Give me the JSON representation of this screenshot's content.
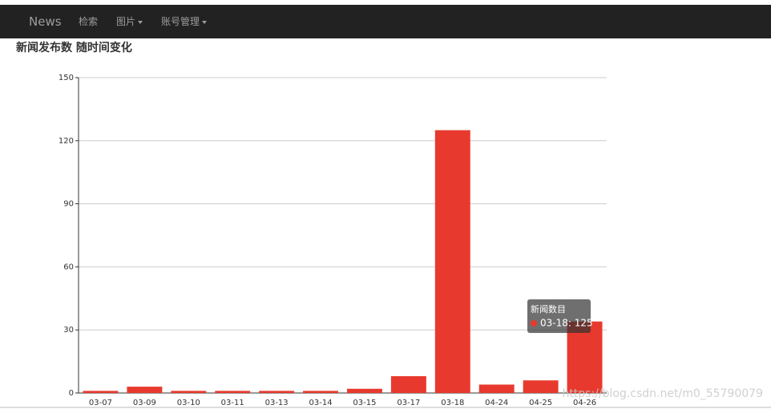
{
  "navbar": {
    "brand": "News",
    "items": [
      "检索",
      "图片",
      "账号管理"
    ]
  },
  "heading": "新闻发布数 随时间变化",
  "chart_data": {
    "type": "bar",
    "categories": [
      "03-07",
      "03-09",
      "03-10",
      "03-11",
      "03-13",
      "03-14",
      "03-15",
      "03-17",
      "03-18",
      "04-24",
      "04-25",
      "04-26"
    ],
    "series": [
      {
        "name": "新闻数目",
        "color": "#e8392e",
        "values": [
          1,
          3,
          1,
          1,
          1,
          1,
          2,
          8,
          125,
          4,
          6,
          34
        ]
      }
    ],
    "ylim": [
      0,
      150
    ],
    "yticks": [
      0,
      30,
      60,
      90,
      120,
      150
    ],
    "grid": true,
    "tooltip": "03-18: 125"
  },
  "watermark": "https://blog.csdn.net/m0_55790079"
}
